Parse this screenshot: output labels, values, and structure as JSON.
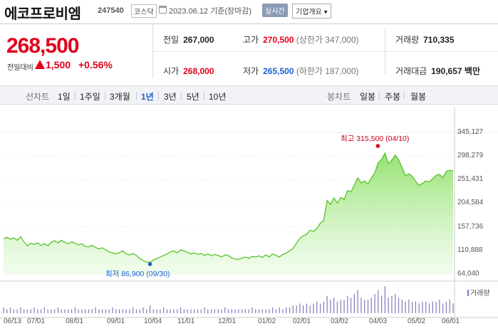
{
  "header": {
    "title": "에코프로비엠",
    "code": "247540",
    "market": "코스닥",
    "date": "2023.06.12  기준(장마감)",
    "realtime_label": "실시간",
    "overview_label": "기업개요 ▾"
  },
  "price": {
    "current": "268,500",
    "change_label": "전일대비",
    "change": "1,500",
    "change_pct": "+0.56%"
  },
  "stats": {
    "prev_label": "전일",
    "prev": "267,000",
    "high_label": "고가",
    "high": "270,500",
    "upper_limit": "(상한가 347,000)",
    "volume_label": "거래량",
    "volume": "710,335",
    "open_label": "시가",
    "open": "268,000",
    "low_label": "저가",
    "low": "265,500",
    "lower_limit": "(하한가 187,000)",
    "amount_label": "거래대금",
    "amount": "190,657",
    "amount_unit": "백만"
  },
  "tabs": {
    "line_label": "선차트",
    "periods": [
      "1일",
      "1주일",
      "3개월",
      "1년",
      "3년",
      "5년",
      "10년"
    ],
    "active_period": "1년",
    "candle_label": "봉차트",
    "candles": [
      "일봉",
      "주봉",
      "월봉"
    ]
  },
  "chart_data": {
    "type": "area",
    "y_ticks": [
      "345,127",
      "298,279",
      "251,431",
      "204,584",
      "157,736",
      "110,888",
      "64,040"
    ],
    "ylim": [
      64040,
      345127
    ],
    "x_ticks": [
      "06/13",
      "07/01",
      "08/01",
      "09/01",
      "10/04",
      "11/01",
      "12/01",
      "01/02",
      "02/01",
      "03/02",
      "04/03",
      "05/02",
      "06/01"
    ],
    "max_annotation": "최고 315,500 (04/10)",
    "min_annotation": "최저 86,900 (09/30)",
    "volume_legend": "거래량",
    "values": [
      134000,
      137000,
      133000,
      136000,
      131000,
      138000,
      128000,
      120000,
      125000,
      123000,
      126000,
      121000,
      124000,
      120000,
      127000,
      130000,
      126000,
      131000,
      127000,
      124000,
      128000,
      125000,
      122000,
      124000,
      119000,
      118000,
      121000,
      117000,
      114000,
      116000,
      112000,
      108000,
      106000,
      104000,
      107000,
      110000,
      104000,
      102000,
      105000,
      101000,
      95000,
      91000,
      88000,
      87000,
      92000,
      95000,
      98000,
      101000,
      104000,
      108000,
      110000,
      106000,
      112000,
      110000,
      107000,
      104000,
      106000,
      103000,
      105000,
      101000,
      104000,
      100000,
      103000,
      101000,
      98000,
      102000,
      101000,
      96000,
      94000,
      93000,
      96000,
      98000,
      95000,
      99000,
      98000,
      100000,
      97000,
      102000,
      98000,
      104000,
      101000,
      98000,
      103000,
      106000,
      110000,
      115000,
      125000,
      135000,
      140000,
      143000,
      151000,
      149000,
      154000,
      165000,
      170000,
      210000,
      202000,
      215000,
      205000,
      216000,
      212000,
      230000,
      227000,
      241000,
      255000,
      245000,
      249000,
      243000,
      255000,
      265000,
      285000,
      291000,
      304000,
      283000,
      290000,
      300000,
      291000,
      275000,
      259000,
      263000,
      258000,
      248000,
      240000,
      244000,
      249000,
      247000,
      253000,
      260000,
      262000,
      255000,
      268000,
      270000,
      268500
    ],
    "volumes": [
      3,
      2,
      3,
      2,
      2,
      3,
      2,
      2,
      2,
      3,
      2,
      2,
      3,
      2,
      2,
      2,
      3,
      2,
      2,
      2,
      2,
      3,
      2,
      2,
      2,
      2,
      2,
      3,
      2,
      2,
      2,
      2,
      3,
      2,
      2,
      2,
      2,
      2,
      3,
      2,
      2,
      3,
      2,
      4,
      2,
      2,
      2,
      3,
      2,
      2,
      2,
      2,
      3,
      2,
      2,
      2,
      2,
      2,
      2,
      3,
      2,
      2,
      2,
      2,
      2,
      3,
      2,
      2,
      2,
      2,
      2,
      2,
      2,
      3,
      2,
      2,
      2,
      2,
      2,
      3,
      2,
      3,
      2,
      3,
      3,
      4,
      4,
      5,
      4,
      5,
      4,
      5,
      6,
      5,
      6,
      9,
      7,
      8,
      6,
      7,
      7,
      9,
      8,
      10,
      12,
      8,
      7,
      7,
      8,
      10,
      12,
      9,
      14,
      8,
      9,
      10,
      8,
      7,
      6,
      7,
      6,
      6,
      5,
      6,
      6,
      5,
      6,
      6,
      7,
      5,
      6,
      7,
      5
    ]
  }
}
